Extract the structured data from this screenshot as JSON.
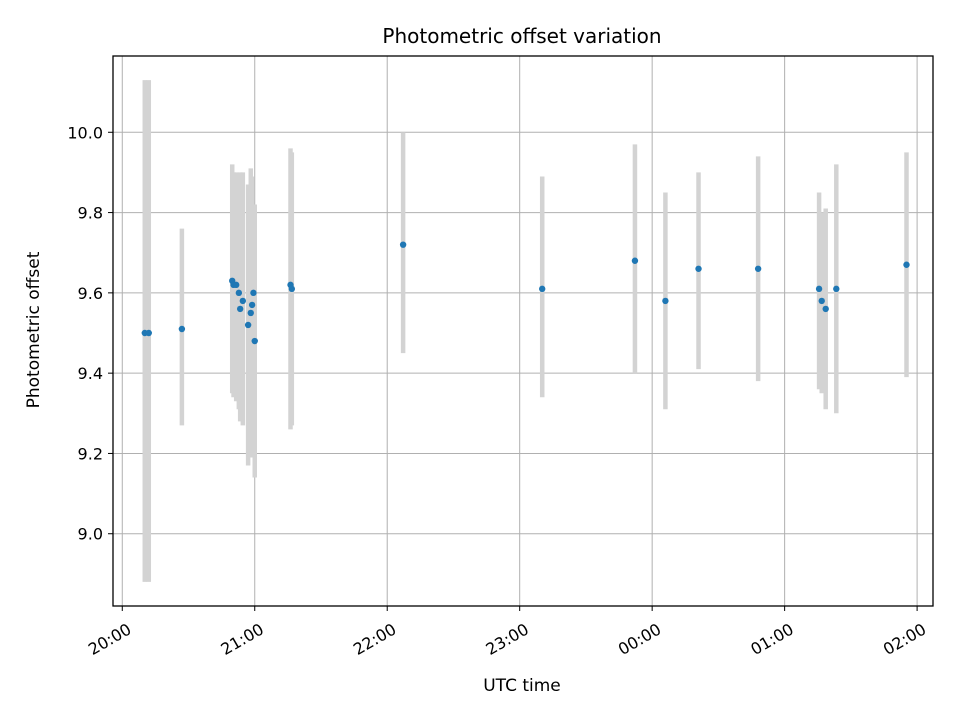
{
  "chart_data": {
    "type": "scatter",
    "title": "Photometric offset variation",
    "xlabel": "UTC time",
    "ylabel": "Photometric offset",
    "x_start_label": "20:00",
    "x_tick_labels": [
      "20:00",
      "21:00",
      "22:00",
      "23:00",
      "00:00",
      "01:00",
      "02:00"
    ],
    "x_range_hours": [
      -0.07,
      6.12
    ],
    "ylim": [
      8.82,
      10.19
    ],
    "y_ticks": [
      9.0,
      9.2,
      9.4,
      9.6,
      9.8,
      10.0
    ],
    "y_tick_labels": [
      "9.0",
      "9.2",
      "9.4",
      "9.6",
      "9.8",
      "10.0"
    ],
    "grid": true,
    "point_color": "#1f77b4",
    "errorbar_color": "#d3d3d3",
    "points": [
      {
        "t_hours": 0.17,
        "y": 9.5,
        "lo": 8.88,
        "hi": 10.13
      },
      {
        "t_hours": 0.2,
        "y": 9.5,
        "lo": 8.88,
        "hi": 10.13
      },
      {
        "t_hours": 0.45,
        "y": 9.51,
        "lo": 9.27,
        "hi": 9.76
      },
      {
        "t_hours": 0.83,
        "y": 9.63,
        "lo": 9.35,
        "hi": 9.92
      },
      {
        "t_hours": 0.84,
        "y": 9.62,
        "lo": 9.34,
        "hi": 9.9
      },
      {
        "t_hours": 0.86,
        "y": 9.62,
        "lo": 9.33,
        "hi": 9.9
      },
      {
        "t_hours": 0.88,
        "y": 9.6,
        "lo": 9.31,
        "hi": 9.89
      },
      {
        "t_hours": 0.89,
        "y": 9.56,
        "lo": 9.28,
        "hi": 9.9
      },
      {
        "t_hours": 0.91,
        "y": 9.58,
        "lo": 9.27,
        "hi": 9.9
      },
      {
        "t_hours": 0.95,
        "y": 9.52,
        "lo": 9.17,
        "hi": 9.87
      },
      {
        "t_hours": 0.97,
        "y": 9.55,
        "lo": 9.19,
        "hi": 9.91
      },
      {
        "t_hours": 0.98,
        "y": 9.57,
        "lo": 9.25,
        "hi": 9.89
      },
      {
        "t_hours": 0.99,
        "y": 9.6,
        "lo": 9.4,
        "hi": 9.8
      },
      {
        "t_hours": 1.0,
        "y": 9.48,
        "lo": 9.14,
        "hi": 9.82
      },
      {
        "t_hours": 1.27,
        "y": 9.62,
        "lo": 9.26,
        "hi": 9.96
      },
      {
        "t_hours": 1.28,
        "y": 9.61,
        "lo": 9.27,
        "hi": 9.95
      },
      {
        "t_hours": 2.12,
        "y": 9.72,
        "lo": 9.45,
        "hi": 10.0
      },
      {
        "t_hours": 3.17,
        "y": 9.61,
        "lo": 9.34,
        "hi": 9.89
      },
      {
        "t_hours": 3.87,
        "y": 9.68,
        "lo": 9.4,
        "hi": 9.97
      },
      {
        "t_hours": 4.1,
        "y": 9.58,
        "lo": 9.31,
        "hi": 9.85
      },
      {
        "t_hours": 4.35,
        "y": 9.66,
        "lo": 9.41,
        "hi": 9.9
      },
      {
        "t_hours": 4.8,
        "y": 9.66,
        "lo": 9.38,
        "hi": 9.94
      },
      {
        "t_hours": 5.26,
        "y": 9.61,
        "lo": 9.36,
        "hi": 9.85
      },
      {
        "t_hours": 5.28,
        "y": 9.58,
        "lo": 9.35,
        "hi": 9.8
      },
      {
        "t_hours": 5.31,
        "y": 9.56,
        "lo": 9.31,
        "hi": 9.81
      },
      {
        "t_hours": 5.39,
        "y": 9.61,
        "lo": 9.3,
        "hi": 9.92
      },
      {
        "t_hours": 5.92,
        "y": 9.67,
        "lo": 9.39,
        "hi": 9.95
      }
    ]
  }
}
